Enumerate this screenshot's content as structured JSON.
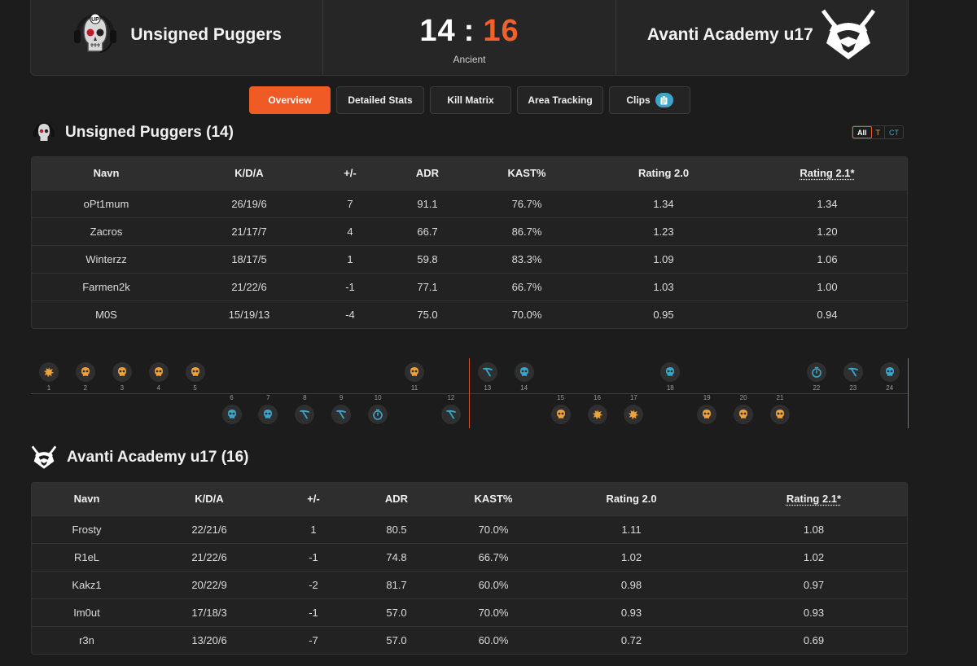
{
  "header": {
    "team1_name": "Unsigned Puggers",
    "team2_name": "Avanti Academy u17",
    "score_team1": "14",
    "score_separator": ":",
    "score_team2": "16",
    "map": "Ancient"
  },
  "tabs": [
    {
      "label": "Overview",
      "active": true
    },
    {
      "label": "Detailed Stats",
      "active": false
    },
    {
      "label": "Kill Matrix",
      "active": false
    },
    {
      "label": "Area Tracking",
      "active": false
    },
    {
      "label": "Clips",
      "active": false
    }
  ],
  "side_filter": {
    "all": "All",
    "t": "T",
    "ct": "CT"
  },
  "colors": {
    "accent": "#f05a24",
    "t_side": "#f0a23a",
    "ct_side": "#3aa6c9"
  },
  "team1_table": {
    "title": "Unsigned Puggers (14)",
    "columns": [
      "Navn",
      "K/D/A",
      "+/-",
      "ADR",
      "KAST%",
      "Rating 2.0",
      "Rating 2.1*"
    ],
    "rows": [
      [
        "oPt1mum",
        "26/19/6",
        "7",
        "91.1",
        "76.7%",
        "1.34",
        "1.34"
      ],
      [
        "Zacros",
        "21/17/7",
        "4",
        "66.7",
        "86.7%",
        "1.23",
        "1.20"
      ],
      [
        "Winterzz",
        "18/17/5",
        "1",
        "59.8",
        "83.3%",
        "1.09",
        "1.06"
      ],
      [
        "Farmen2k",
        "21/22/6",
        "-1",
        "77.1",
        "66.7%",
        "1.03",
        "1.00"
      ],
      [
        "M0S",
        "15/19/13",
        "-4",
        "75.0",
        "70.0%",
        "0.95",
        "0.94"
      ]
    ]
  },
  "team2_table": {
    "title": "Avanti Academy u17 (16)",
    "columns": [
      "Navn",
      "K/D/A",
      "+/-",
      "ADR",
      "KAST%",
      "Rating 2.0",
      "Rating 2.1*"
    ],
    "rows": [
      [
        "Frosty",
        "22/21/6",
        "1",
        "80.5",
        "70.0%",
        "1.11",
        "1.08"
      ],
      [
        "R1eL",
        "21/22/6",
        "-1",
        "74.8",
        "66.7%",
        "1.02",
        "1.02"
      ],
      [
        "Kakz1",
        "20/22/9",
        "-2",
        "81.7",
        "60.0%",
        "0.98",
        "0.97"
      ],
      [
        "Im0ut",
        "17/18/3",
        "-1",
        "57.0",
        "70.0%",
        "0.93",
        "0.93"
      ],
      [
        "r3n",
        "13/20/6",
        "-7",
        "57.0",
        "60.0%",
        "0.72",
        "0.69"
      ]
    ]
  },
  "round_timeline": [
    {
      "round": "1",
      "winner": "team1",
      "side": "T",
      "outcome": "bomb-exploded-icon"
    },
    {
      "round": "2",
      "winner": "team1",
      "side": "T",
      "outcome": "skull-icon"
    },
    {
      "round": "3",
      "winner": "team1",
      "side": "T",
      "outcome": "skull-icon"
    },
    {
      "round": "4",
      "winner": "team1",
      "side": "T",
      "outcome": "skull-icon"
    },
    {
      "round": "5",
      "winner": "team1",
      "side": "T",
      "outcome": "skull-icon"
    },
    {
      "round": "6",
      "winner": "team2",
      "side": "CT",
      "outcome": "skull-icon"
    },
    {
      "round": "7",
      "winner": "team2",
      "side": "CT",
      "outcome": "skull-icon"
    },
    {
      "round": "8",
      "winner": "team2",
      "side": "CT",
      "outcome": "defuse-icon"
    },
    {
      "round": "9",
      "winner": "team2",
      "side": "CT",
      "outcome": "defuse-icon"
    },
    {
      "round": "10",
      "winner": "team2",
      "side": "CT",
      "outcome": "timer-icon"
    },
    {
      "round": "11",
      "winner": "team1",
      "side": "T",
      "outcome": "skull-icon"
    },
    {
      "round": "12",
      "winner": "team2",
      "side": "CT",
      "outcome": "defuse-icon"
    },
    {
      "round": "13",
      "winner": "team1",
      "side": "CT",
      "outcome": "defuse-icon"
    },
    {
      "round": "14",
      "winner": "team1",
      "side": "CT",
      "outcome": "skull-icon"
    },
    {
      "round": "15",
      "winner": "team2",
      "side": "T",
      "outcome": "skull-icon"
    },
    {
      "round": "16",
      "winner": "team2",
      "side": "T",
      "outcome": "bomb-exploded-icon"
    },
    {
      "round": "17",
      "winner": "team2",
      "side": "T",
      "outcome": "bomb-exploded-icon"
    },
    {
      "round": "18",
      "winner": "team1",
      "side": "CT",
      "outcome": "skull-icon"
    },
    {
      "round": "19",
      "winner": "team2",
      "side": "T",
      "outcome": "skull-icon"
    },
    {
      "round": "20",
      "winner": "team2",
      "side": "T",
      "outcome": "skull-icon"
    },
    {
      "round": "21",
      "winner": "team2",
      "side": "T",
      "outcome": "skull-icon"
    },
    {
      "round": "22",
      "winner": "team1",
      "side": "CT",
      "outcome": "timer-icon"
    },
    {
      "round": "23",
      "winner": "team1",
      "side": "CT",
      "outcome": "defuse-icon"
    },
    {
      "round": "24",
      "winner": "team1",
      "side": "CT",
      "outcome": "skull-icon"
    }
  ]
}
